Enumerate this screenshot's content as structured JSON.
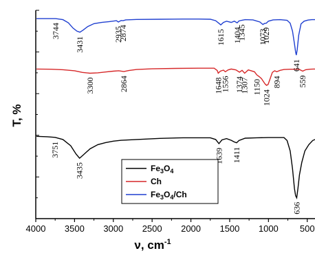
{
  "chart_data": {
    "type": "line",
    "xlabel": "ν, cm",
    "xlabel_sup": "-1",
    "ylabel": "T, %",
    "xlim": [
      4000,
      400
    ],
    "x_reversed": true,
    "xticks": [
      4000,
      3500,
      3000,
      2500,
      2000,
      1500,
      1000,
      500
    ],
    "grid": false,
    "legend_position": "lower-center",
    "series": [
      {
        "name_parts": [
          [
            "Fe",
            false
          ],
          [
            "3",
            true
          ],
          [
            "O",
            false
          ],
          [
            "4",
            true
          ]
        ],
        "color": "#000000",
        "x": [
          3990,
          3850,
          3751,
          3650,
          3550,
          3480,
          3435,
          3390,
          3300,
          3200,
          3100,
          3000,
          2900,
          2700,
          2400,
          2100,
          1900,
          1750,
          1680,
          1639,
          1600,
          1540,
          1480,
          1440,
          1411,
          1380,
          1300,
          1150,
          1000,
          900,
          800,
          760,
          720,
          690,
          665,
          650,
          636,
          620,
          600,
          570,
          530,
          480,
          430,
          400
        ],
        "y": [
          0.605,
          0.607,
          0.61,
          0.62,
          0.65,
          0.69,
          0.71,
          0.695,
          0.665,
          0.645,
          0.635,
          0.628,
          0.624,
          0.62,
          0.615,
          0.612,
          0.612,
          0.612,
          0.62,
          0.64,
          0.622,
          0.616,
          0.624,
          0.632,
          0.636,
          0.625,
          0.614,
          0.612,
          0.611,
          0.611,
          0.611,
          0.625,
          0.675,
          0.76,
          0.855,
          0.89,
          0.9,
          0.855,
          0.79,
          0.73,
          0.675,
          0.645,
          0.625,
          0.62
        ],
        "annotations": [
          3751,
          3435,
          1639,
          1411,
          636
        ]
      },
      {
        "name": "Ch",
        "color": "#d62728",
        "x": [
          3990,
          3800,
          3650,
          3500,
          3400,
          3300,
          3200,
          3100,
          3000,
          2930,
          2864,
          2800,
          2700,
          2500,
          2200,
          1900,
          1700,
          1660,
          1648,
          1620,
          1580,
          1556,
          1520,
          1480,
          1420,
          1374,
          1340,
          1307,
          1260,
          1180,
          1150,
          1120,
          1090,
          1060,
          1040,
          1024,
          1005,
          980,
          950,
          920,
          894,
          850,
          800,
          720,
          640,
          600,
          559,
          520,
          470,
          420,
          400
        ],
        "y": [
          0.282,
          0.283,
          0.285,
          0.29,
          0.298,
          0.302,
          0.3,
          0.296,
          0.292,
          0.29,
          0.294,
          0.289,
          0.284,
          0.281,
          0.279,
          0.278,
          0.278,
          0.289,
          0.302,
          0.292,
          0.287,
          0.295,
          0.286,
          0.282,
          0.286,
          0.297,
          0.288,
          0.302,
          0.286,
          0.295,
          0.31,
          0.318,
          0.328,
          0.345,
          0.355,
          0.36,
          0.356,
          0.33,
          0.298,
          0.29,
          0.295,
          0.288,
          0.284,
          0.283,
          0.283,
          0.284,
          0.292,
          0.285,
          0.283,
          0.282,
          0.282
        ],
        "annotations": [
          3300,
          2864,
          1648,
          1556,
          1374,
          1307,
          1150,
          1024,
          894,
          559
        ]
      },
      {
        "name_parts": [
          [
            "Fe",
            false
          ],
          [
            "3",
            true
          ],
          [
            "O",
            false
          ],
          [
            "4",
            true
          ],
          [
            "/Ch",
            false
          ]
        ],
        "color": "#1f3fd0",
        "x": [
          3990,
          3850,
          3744,
          3650,
          3580,
          3520,
          3470,
          3431,
          3390,
          3330,
          3250,
          3150,
          3050,
          2960,
          2935,
          2900,
          2874,
          2840,
          2700,
          2400,
          2100,
          1900,
          1750,
          1680,
          1640,
          1615,
          1580,
          1540,
          1480,
          1440,
          1404,
          1380,
          1345,
          1300,
          1200,
          1110,
          1073,
          1050,
          1029,
          1000,
          940,
          850,
          760,
          720,
          690,
          665,
          650,
          641,
          630,
          610,
          580,
          540,
          490,
          440,
          400
        ],
        "y": [
          0.04,
          0.04,
          0.04,
          0.045,
          0.06,
          0.085,
          0.1,
          0.105,
          0.095,
          0.078,
          0.064,
          0.058,
          0.054,
          0.05,
          0.056,
          0.049,
          0.05,
          0.046,
          0.044,
          0.043,
          0.042,
          0.042,
          0.043,
          0.05,
          0.062,
          0.07,
          0.058,
          0.052,
          0.058,
          0.052,
          0.06,
          0.051,
          0.048,
          0.045,
          0.046,
          0.056,
          0.068,
          0.063,
          0.062,
          0.052,
          0.046,
          0.045,
          0.048,
          0.062,
          0.1,
          0.16,
          0.2,
          0.215,
          0.19,
          0.12,
          0.065,
          0.052,
          0.047,
          0.045,
          0.045
        ],
        "annotations": [
          3744,
          3431,
          2935,
          2874,
          1615,
          1404,
          1345,
          1073,
          1029,
          641
        ]
      }
    ]
  }
}
